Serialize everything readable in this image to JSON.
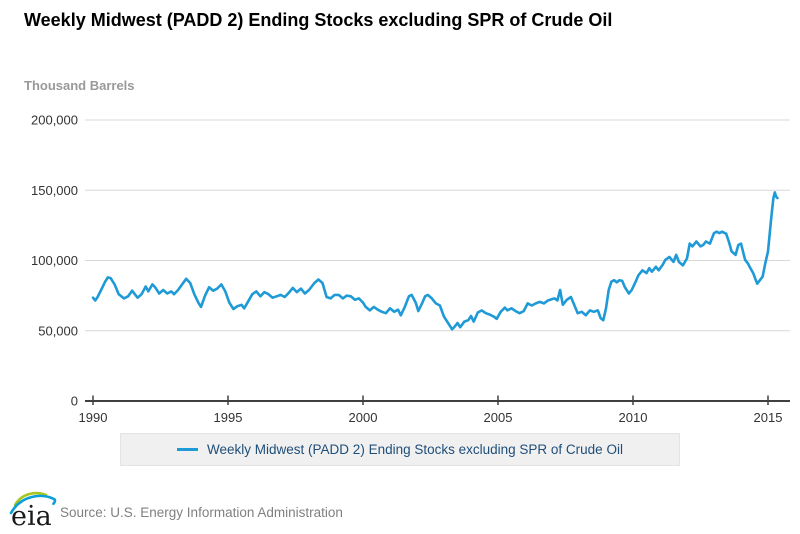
{
  "title": "Weekly Midwest (PADD 2) Ending Stocks excluding SPR of Crude Oil",
  "unit_label": "Thousand Barrels",
  "legend": {
    "label": "Weekly Midwest (PADD 2) Ending Stocks excluding SPR of Crude Oil"
  },
  "footer": {
    "logo_text": "eia",
    "source": "Source: U.S. Energy Information Administration"
  },
  "colors": {
    "line": "#1F9AD6",
    "grid": "#D8D8D8",
    "axis": "#404040",
    "tick_text": "#333333",
    "unit_label_text": "#999999",
    "legend_bg": "#F0F0F0",
    "legend_text": "#1F4E79",
    "source_text": "#808080",
    "logo_green": "#A8C520",
    "logo_blue": "#0C9ED9"
  },
  "chart_data": {
    "type": "line",
    "title": "Weekly Midwest (PADD 2) Ending Stocks excluding SPR of Crude Oil",
    "xlabel": "",
    "ylabel": "Thousand Barrels",
    "xlim": [
      1989.7,
      2015.8
    ],
    "ylim": [
      0,
      200000
    ],
    "x_ticks": [
      1990,
      1995,
      2000,
      2005,
      2010,
      2015
    ],
    "y_ticks": [
      0,
      50000,
      100000,
      150000,
      200000
    ],
    "grid": "horizontal",
    "legend_position": "bottom",
    "series": [
      {
        "name": "Weekly Midwest (PADD 2) Ending Stocks excluding SPR of Crude Oil",
        "points": [
          [
            1990.0,
            73500
          ],
          [
            1990.08,
            71500
          ],
          [
            1990.17,
            74000
          ],
          [
            1990.3,
            79000
          ],
          [
            1990.45,
            85000
          ],
          [
            1990.55,
            88000
          ],
          [
            1990.65,
            87500
          ],
          [
            1990.8,
            83000
          ],
          [
            1990.95,
            76000
          ],
          [
            1991.05,
            74500
          ],
          [
            1991.15,
            73000
          ],
          [
            1991.3,
            74500
          ],
          [
            1991.45,
            78500
          ],
          [
            1991.55,
            76000
          ],
          [
            1991.65,
            73500
          ],
          [
            1991.8,
            76000
          ],
          [
            1991.95,
            81500
          ],
          [
            1992.05,
            78000
          ],
          [
            1992.2,
            83000
          ],
          [
            1992.3,
            81000
          ],
          [
            1992.45,
            76500
          ],
          [
            1992.6,
            79000
          ],
          [
            1992.75,
            76500
          ],
          [
            1992.9,
            78000
          ],
          [
            1993.0,
            76000
          ],
          [
            1993.15,
            79000
          ],
          [
            1993.3,
            83000
          ],
          [
            1993.45,
            87000
          ],
          [
            1993.6,
            84000
          ],
          [
            1993.75,
            76000
          ],
          [
            1993.9,
            70000
          ],
          [
            1994.0,
            67000
          ],
          [
            1994.15,
            75000
          ],
          [
            1994.3,
            81000
          ],
          [
            1994.45,
            78500
          ],
          [
            1994.6,
            80000
          ],
          [
            1994.75,
            83000
          ],
          [
            1994.9,
            78000
          ],
          [
            1995.05,
            70000
          ],
          [
            1995.2,
            65500
          ],
          [
            1995.35,
            67500
          ],
          [
            1995.5,
            68500
          ],
          [
            1995.6,
            66000
          ],
          [
            1995.75,
            71000
          ],
          [
            1995.9,
            76000
          ],
          [
            1996.05,
            78000
          ],
          [
            1996.2,
            74500
          ],
          [
            1996.35,
            77500
          ],
          [
            1996.5,
            76000
          ],
          [
            1996.65,
            73500
          ],
          [
            1996.8,
            74500
          ],
          [
            1996.95,
            75500
          ],
          [
            1997.1,
            74000
          ],
          [
            1997.25,
            77000
          ],
          [
            1997.4,
            80500
          ],
          [
            1997.55,
            77500
          ],
          [
            1997.7,
            80000
          ],
          [
            1997.85,
            76500
          ],
          [
            1998.0,
            79000
          ],
          [
            1998.2,
            84000
          ],
          [
            1998.35,
            86500
          ],
          [
            1998.5,
            84000
          ],
          [
            1998.65,
            74000
          ],
          [
            1998.8,
            73000
          ],
          [
            1998.95,
            75500
          ],
          [
            1999.1,
            75500
          ],
          [
            1999.25,
            73000
          ],
          [
            1999.4,
            75000
          ],
          [
            1999.55,
            74500
          ],
          [
            1999.7,
            72000
          ],
          [
            1999.85,
            73000
          ],
          [
            2000.0,
            70000
          ],
          [
            2000.1,
            67000
          ],
          [
            2000.25,
            64500
          ],
          [
            2000.4,
            67000
          ],
          [
            2000.55,
            65000
          ],
          [
            2000.7,
            63500
          ],
          [
            2000.85,
            62500
          ],
          [
            2001.0,
            66000
          ],
          [
            2001.15,
            63500
          ],
          [
            2001.3,
            65000
          ],
          [
            2001.4,
            61000
          ],
          [
            2001.55,
            67000
          ],
          [
            2001.7,
            74500
          ],
          [
            2001.8,
            75500
          ],
          [
            2001.95,
            70000
          ],
          [
            2002.05,
            64000
          ],
          [
            2002.2,
            70000
          ],
          [
            2002.3,
            74500
          ],
          [
            2002.4,
            75500
          ],
          [
            2002.55,
            73000
          ],
          [
            2002.7,
            69500
          ],
          [
            2002.85,
            68000
          ],
          [
            2003.0,
            60000
          ],
          [
            2003.15,
            55500
          ],
          [
            2003.3,
            51000
          ],
          [
            2003.4,
            53000
          ],
          [
            2003.5,
            55500
          ],
          [
            2003.6,
            52500
          ],
          [
            2003.75,
            56500
          ],
          [
            2003.9,
            57500
          ],
          [
            2004.0,
            60500
          ],
          [
            2004.1,
            56500
          ],
          [
            2004.25,
            63000
          ],
          [
            2004.4,
            64500
          ],
          [
            2004.55,
            62500
          ],
          [
            2004.7,
            61500
          ],
          [
            2004.85,
            60000
          ],
          [
            2004.95,
            58500
          ],
          [
            2005.1,
            63500
          ],
          [
            2005.25,
            66500
          ],
          [
            2005.35,
            64500
          ],
          [
            2005.5,
            66000
          ],
          [
            2005.65,
            64000
          ],
          [
            2005.8,
            62500
          ],
          [
            2005.95,
            64000
          ],
          [
            2006.1,
            69500
          ],
          [
            2006.25,
            68000
          ],
          [
            2006.4,
            69500
          ],
          [
            2006.55,
            70500
          ],
          [
            2006.7,
            69500
          ],
          [
            2006.85,
            71500
          ],
          [
            2007.0,
            72500
          ],
          [
            2007.1,
            73000
          ],
          [
            2007.2,
            71500
          ],
          [
            2007.3,
            79000
          ],
          [
            2007.4,
            68500
          ],
          [
            2007.55,
            72000
          ],
          [
            2007.7,
            74000
          ],
          [
            2007.8,
            69500
          ],
          [
            2007.95,
            62500
          ],
          [
            2008.1,
            63500
          ],
          [
            2008.25,
            61000
          ],
          [
            2008.4,
            64500
          ],
          [
            2008.55,
            63500
          ],
          [
            2008.7,
            64500
          ],
          [
            2008.8,
            59000
          ],
          [
            2008.9,
            57500
          ],
          [
            2009.0,
            66000
          ],
          [
            2009.1,
            79000
          ],
          [
            2009.2,
            85000
          ],
          [
            2009.3,
            86000
          ],
          [
            2009.4,
            84500
          ],
          [
            2009.5,
            86000
          ],
          [
            2009.6,
            85500
          ],
          [
            2009.7,
            81000
          ],
          [
            2009.85,
            76500
          ],
          [
            2009.95,
            79000
          ],
          [
            2010.1,
            85000
          ],
          [
            2010.2,
            89500
          ],
          [
            2010.35,
            93000
          ],
          [
            2010.5,
            91000
          ],
          [
            2010.6,
            94500
          ],
          [
            2010.7,
            92000
          ],
          [
            2010.85,
            95500
          ],
          [
            2010.95,
            93000
          ],
          [
            2011.1,
            97000
          ],
          [
            2011.2,
            100500
          ],
          [
            2011.35,
            102500
          ],
          [
            2011.5,
            99000
          ],
          [
            2011.6,
            104000
          ],
          [
            2011.7,
            99000
          ],
          [
            2011.85,
            96500
          ],
          [
            2012.0,
            101500
          ],
          [
            2012.1,
            112000
          ],
          [
            2012.2,
            110000
          ],
          [
            2012.35,
            113500
          ],
          [
            2012.5,
            110000
          ],
          [
            2012.6,
            111000
          ],
          [
            2012.7,
            113500
          ],
          [
            2012.85,
            112000
          ],
          [
            2013.0,
            119500
          ],
          [
            2013.1,
            120500
          ],
          [
            2013.2,
            119500
          ],
          [
            2013.3,
            120500
          ],
          [
            2013.45,
            119000
          ],
          [
            2013.55,
            113500
          ],
          [
            2013.65,
            106500
          ],
          [
            2013.8,
            104000
          ],
          [
            2013.9,
            111000
          ],
          [
            2014.0,
            112000
          ],
          [
            2014.15,
            100500
          ],
          [
            2014.25,
            98000
          ],
          [
            2014.35,
            94500
          ],
          [
            2014.45,
            91000
          ],
          [
            2014.5,
            88500
          ],
          [
            2014.6,
            83500
          ],
          [
            2014.7,
            86000
          ],
          [
            2014.8,
            88500
          ],
          [
            2014.9,
            98000
          ],
          [
            2015.0,
            106500
          ],
          [
            2015.05,
            116000
          ],
          [
            2015.1,
            126500
          ],
          [
            2015.15,
            136000
          ],
          [
            2015.2,
            144500
          ],
          [
            2015.25,
            148500
          ],
          [
            2015.3,
            145500
          ],
          [
            2015.35,
            144500
          ]
        ]
      }
    ]
  }
}
